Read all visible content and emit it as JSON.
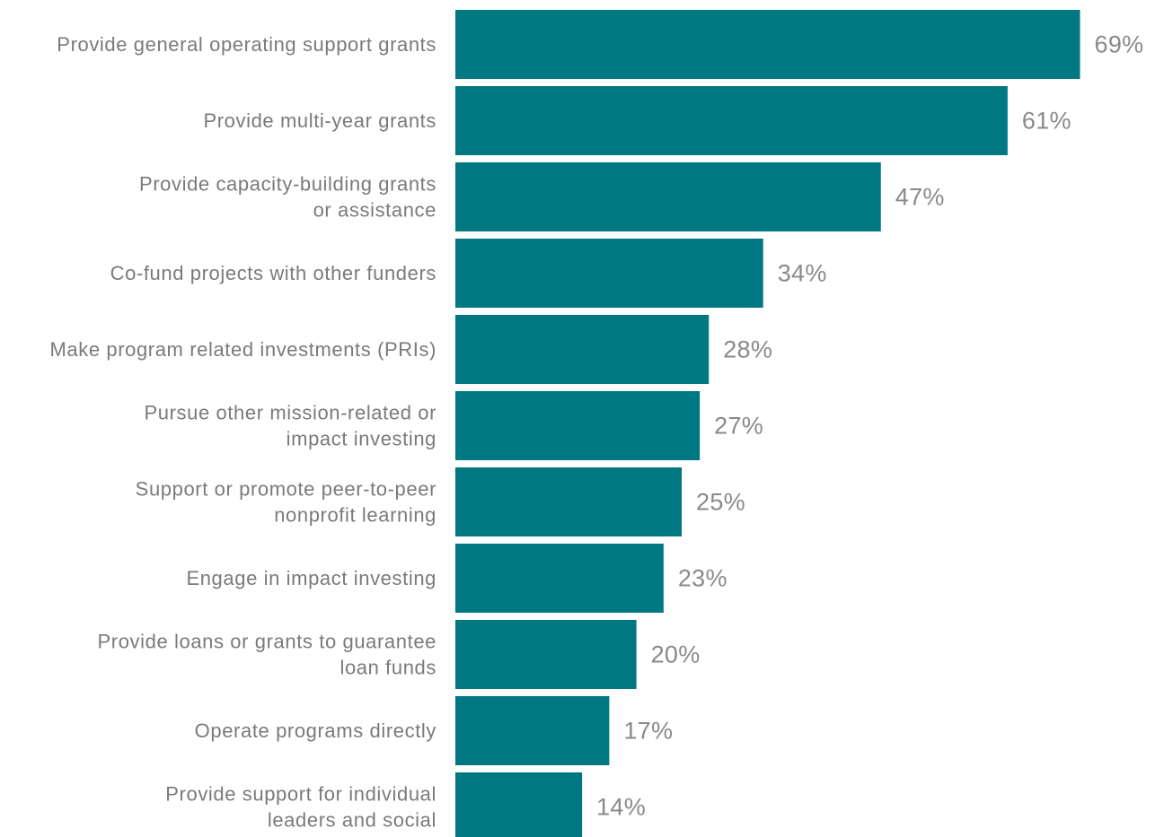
{
  "chart_data": {
    "type": "bar",
    "orientation": "horizontal",
    "categories": [
      [
        "Provide general operating support grants"
      ],
      [
        "Provide multi-year grants"
      ],
      [
        "Provide capacity-building grants",
        "or assistance"
      ],
      [
        "Co-fund projects with other funders"
      ],
      [
        "Make program related investments (PRIs)"
      ],
      [
        "Pursue other mission-related or",
        "impact investing"
      ],
      [
        "Support or promote peer-to-peer",
        "nonprofit learning"
      ],
      [
        "Engage in impact investing"
      ],
      [
        "Provide loans or grants to guarantee",
        "loan funds"
      ],
      [
        "Operate programs directly"
      ],
      [
        "Provide support for individual",
        "leaders and social"
      ]
    ],
    "values": [
      69,
      61,
      47,
      34,
      28,
      27,
      25,
      23,
      20,
      17,
      14
    ],
    "value_labels": [
      "69%",
      "61%",
      "47%",
      "34%",
      "28%",
      "27%",
      "25%",
      "23%",
      "20%",
      "17%",
      "14%"
    ],
    "unit": "%",
    "title": "",
    "xlabel": "",
    "ylabel": "",
    "xlim": [
      0,
      100
    ],
    "grid": false,
    "legend": "none",
    "bar_color": "#007882",
    "label_color": "#7a7a7a",
    "value_color": "#8a8a8a"
  }
}
